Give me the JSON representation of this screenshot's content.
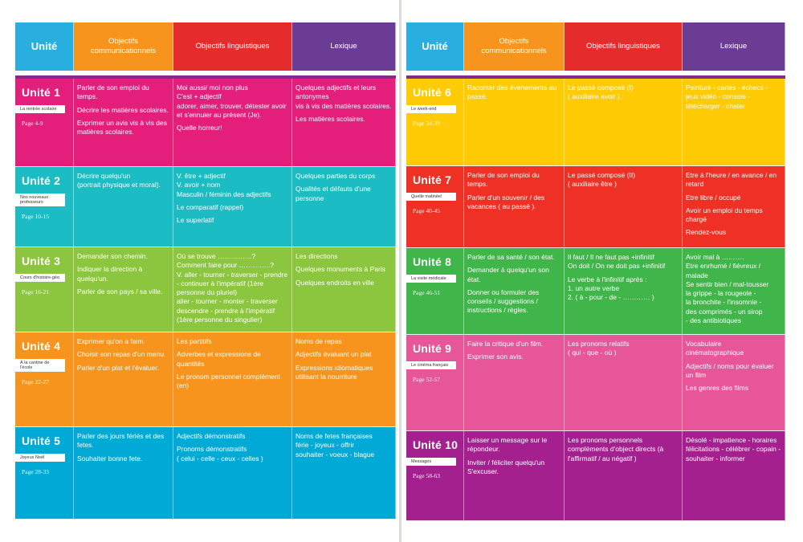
{
  "header": {
    "unite": "Unité",
    "objectifs_comm": "Objectifs communicationnels",
    "objectifs_ling": "Objectifs linguistiques",
    "lexique": "Lexique"
  },
  "colors": {
    "pink": "#e41e7b",
    "teal": "#1bbcc4",
    "lime": "#8cc63f",
    "orange": "#f7941d",
    "cyan": "#00a9d6",
    "yellow": "#ffcb05",
    "red": "#ee3124",
    "green": "#3fb54a",
    "rose": "#e8569a",
    "magenta": "#a5208f"
  },
  "units": [
    {
      "title": "Unité 1",
      "label": "La rentrée scolaire",
      "page": "Page 4-9",
      "color": "#e41e7b",
      "comm": [
        "Parler de son emploi du temps.",
        "Décrire les matières scolaires.",
        "Exprimer un avis vis à vis des matières scolaires."
      ],
      "ling": [
        "Moi aussi/ moi non plus\nC'est + adjectif\nadorer, aimer, trouver, détester avoir et s'ennuier au présent (Je).",
        "Quelle horreur!"
      ],
      "lex": [
        "Quelques adjectifs et leurs antonymes\nvis à vis des matières scolaires.",
        "Les matières scolaires."
      ]
    },
    {
      "title": "Unité 2",
      "label": "Nos nouveaux professeurs",
      "page": "Page 10-15",
      "color": "#1bbcc4",
      "comm": [
        "Décrire quelqu'un\n(portrait physique et moral)."
      ],
      "ling": [
        "V. être + adjectif\nV. avoir + nom\nMasculin / féminin des adjectifs",
        "Le comparatif (rappel)",
        "Le superlatif"
      ],
      "lex": [
        "Quelques parties du corps",
        "Qualités et défauts d'une personne"
      ]
    },
    {
      "title": "Unité 3",
      "label": "Cours d'histoire-géo",
      "page": "Page 16-21",
      "color": "#8cc63f",
      "comm": [
        "Demander son chemin.",
        "Indiquer la direction à quelqu'un.",
        "Parler de son pays / sa ville."
      ],
      "ling": [
        "Où se trouve ……………?\nComment faire pour …………..?\nV. aller - tourner - traverser - prendre - continuer à l'impératif (1ère personne du pluriel)\naller - tourner - monter - traverser descendre - prendre à l'impératif (1ère personne du singulier)"
      ],
      "lex": [
        "Les directions",
        "Quelques monuments à Paris",
        "Quelques endroits en ville"
      ]
    },
    {
      "title": "Unité 4",
      "label": "À la cantine de l'école",
      "page": "Page 22-27",
      "color": "#f7941d",
      "comm": [
        "Exprimer qu'on a faim.",
        "Choisir son repas d'un menu.",
        "Parler d'un plat et l'évaluer."
      ],
      "ling": [
        "Les partitifs",
        "Adverbes et expressions de quantités",
        "Le pronom personnel complément (en)"
      ],
      "lex": [
        "Noms de repas",
        "Adjectifs évaluant un plat",
        "Expressions idiomatiques utilisant la nourriture"
      ]
    },
    {
      "title": "Unité 5",
      "label": "Joyeux Noël",
      "page": "Page 28-33",
      "color": "#00a9d6",
      "comm": [
        "Parler des jours fériés et des fetes.",
        "Souhaiter bonne fete."
      ],
      "ling": [
        "Adjectifs démonstratifs",
        "Pronoms démonstratifs\n( celui - celle - ceux - celles )"
      ],
      "lex": [
        "Noms de fetes françaises\nférie - joyeux - offrir\nsouhaiter - voeux - blague"
      ]
    },
    {
      "title": "Unité 6",
      "label": "Le week-end",
      "page": "Page 34-39",
      "color": "#ffcb05",
      "comm": [
        "Raconter des événements au passé."
      ],
      "ling": [
        "Le passé composé (I)\n( auxiliaire avoir )."
      ],
      "lex": [
        "Peinture - cartes - échecs - jeux vidéo - console - télécharger - chater"
      ]
    },
    {
      "title": "Unité 7",
      "label": "Quelle matinée!",
      "page": "Page 40-45",
      "color": "#ee3124",
      "comm": [
        "Parler de son emploi du temps.",
        "Parler d'un souvenir / des vacances ( au passé )."
      ],
      "ling": [
        "Le passé composé (II)\n( auxiliaire être )"
      ],
      "lex": [
        "Etre à l'heure / en avance / en retard",
        "Etre libre / occupé",
        "Avoir un emploi du temps chargé",
        "Rendez-vous"
      ]
    },
    {
      "title": "Unité 8",
      "label": "La visite médicale",
      "page": "Page 46-51",
      "color": "#3fb54a",
      "comm": [
        "Parler de sa santé / son état.",
        "Demander à quelqu'un son état.",
        "Donner ou formuler des conseils / suggestions / instructions / règles."
      ],
      "ling": [
        "Il faut / Il ne faut pas +infinitif\nOn doit / On ne doit pas +infinitif",
        "Le verbe à l'infinitif après :\n1. un autre verbe\n2. ( à - pour - de - ………… )"
      ],
      "lex": [
        "Avoir mal à ……….\nEtre enrhumé / fiévreux / malade\nSe sentir bien / mal-tousser\nla grippe - la rougeole -\nla bronchite - l'insomnie -\ndes comprimés - un sirop\n- des antibiotiques"
      ]
    },
    {
      "title": "Unité 9",
      "label": "Le cinéma français",
      "page": "Page 52-57",
      "color": "#e8569a",
      "comm": [
        "Faire la critique d'un film.",
        "Exprimer son avis."
      ],
      "ling": [
        "Les pronoms relatifs\n( qui - que - où )"
      ],
      "lex": [
        "Vocabulaire cinématographique",
        "Adjectifs / noms pour évaluer un film",
        "Les genres des films"
      ]
    },
    {
      "title": "Unité 10",
      "label": "Messages",
      "page": "Page 58-63",
      "color": "#a5208f",
      "comm": [
        "Laisser un message sur le répondeur.",
        "Inviter / féliciter quelqu'un S'excuser."
      ],
      "ling": [
        "Les pronoms personnels compléments d'object directs (à l'affirmatif / au négatif )"
      ],
      "lex": [
        "Désolé - impatience - horaires félicitations - célébrer - copain - souhaiter - informer"
      ]
    }
  ]
}
